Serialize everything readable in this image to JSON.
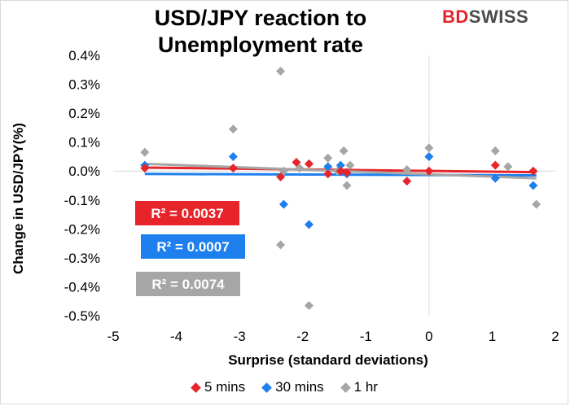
{
  "header": {
    "title_line1": "USD/JPY reaction to",
    "title_line2": "Unemployment rate",
    "logo_part1": "BD",
    "logo_part2": "SWISS"
  },
  "chart_data": {
    "type": "scatter",
    "title": "USD/JPY reaction to Unemployment rate",
    "xlabel": "Surprise (standard deviations)",
    "ylabel": "Change in USD/JPY(%)",
    "xlim": [
      -5,
      2
    ],
    "ylim": [
      -0.5,
      0.4
    ],
    "x_ticks": [
      -5,
      -4,
      -3,
      -2,
      -1,
      0,
      1,
      2
    ],
    "y_ticks": [
      0.4,
      0.3,
      0.2,
      0.1,
      0.0,
      -0.1,
      -0.2,
      -0.3,
      -0.4,
      -0.5
    ],
    "y_tick_labels": [
      "0.4%",
      "0.3%",
      "0.2%",
      "0.1%",
      "0.0%",
      "-0.1%",
      "-0.2%",
      "-0.3%",
      "-0.4%",
      "-0.5%"
    ],
    "legend_position": "bottom",
    "series": [
      {
        "name": "5 mins",
        "color": "#e8242b",
        "x": [
          -4.5,
          -3.1,
          -2.35,
          -2.1,
          -1.9,
          -1.6,
          -1.4,
          -1.3,
          -0.35,
          0.0,
          1.05,
          1.65
        ],
        "y": [
          0.01,
          0.01,
          -0.02,
          0.03,
          0.025,
          -0.01,
          0.0,
          -0.005,
          -0.035,
          0.0,
          0.02,
          0.0
        ],
        "trend_r2": "R² = 0.0037",
        "trend": {
          "x": [
            -4.5,
            1.7
          ],
          "y": [
            0.012,
            -0.004
          ]
        }
      },
      {
        "name": "30 mins",
        "color": "#1e7fee",
        "x": [
          -4.5,
          -3.1,
          -2.3,
          -1.9,
          -1.6,
          -1.4,
          -1.3,
          0.0,
          1.05,
          1.65
        ],
        "y": [
          0.02,
          0.05,
          -0.115,
          -0.185,
          0.015,
          0.02,
          -0.01,
          0.05,
          -0.025,
          -0.05
        ],
        "trend_r2": "R² = 0.0007",
        "trend": {
          "x": [
            -4.5,
            1.7
          ],
          "y": [
            -0.01,
            -0.015
          ]
        }
      },
      {
        "name": "1 hr",
        "color": "#a6a6a6",
        "x": [
          -4.5,
          -3.1,
          -2.35,
          -2.3,
          -2.35,
          -1.9,
          -2.05,
          -1.6,
          -1.45,
          -1.35,
          -1.3,
          -1.25,
          -0.35,
          0.0,
          1.05,
          1.25,
          1.7
        ],
        "y": [
          0.065,
          0.145,
          0.345,
          0.0,
          -0.255,
          -0.465,
          0.01,
          0.045,
          0.0,
          0.07,
          -0.05,
          0.02,
          0.005,
          0.08,
          0.07,
          0.015,
          -0.115
        ],
        "trend_r2": "R² = 0.0074",
        "trend": {
          "x": [
            -4.5,
            1.7
          ],
          "y": [
            0.025,
            -0.025
          ]
        }
      }
    ]
  }
}
